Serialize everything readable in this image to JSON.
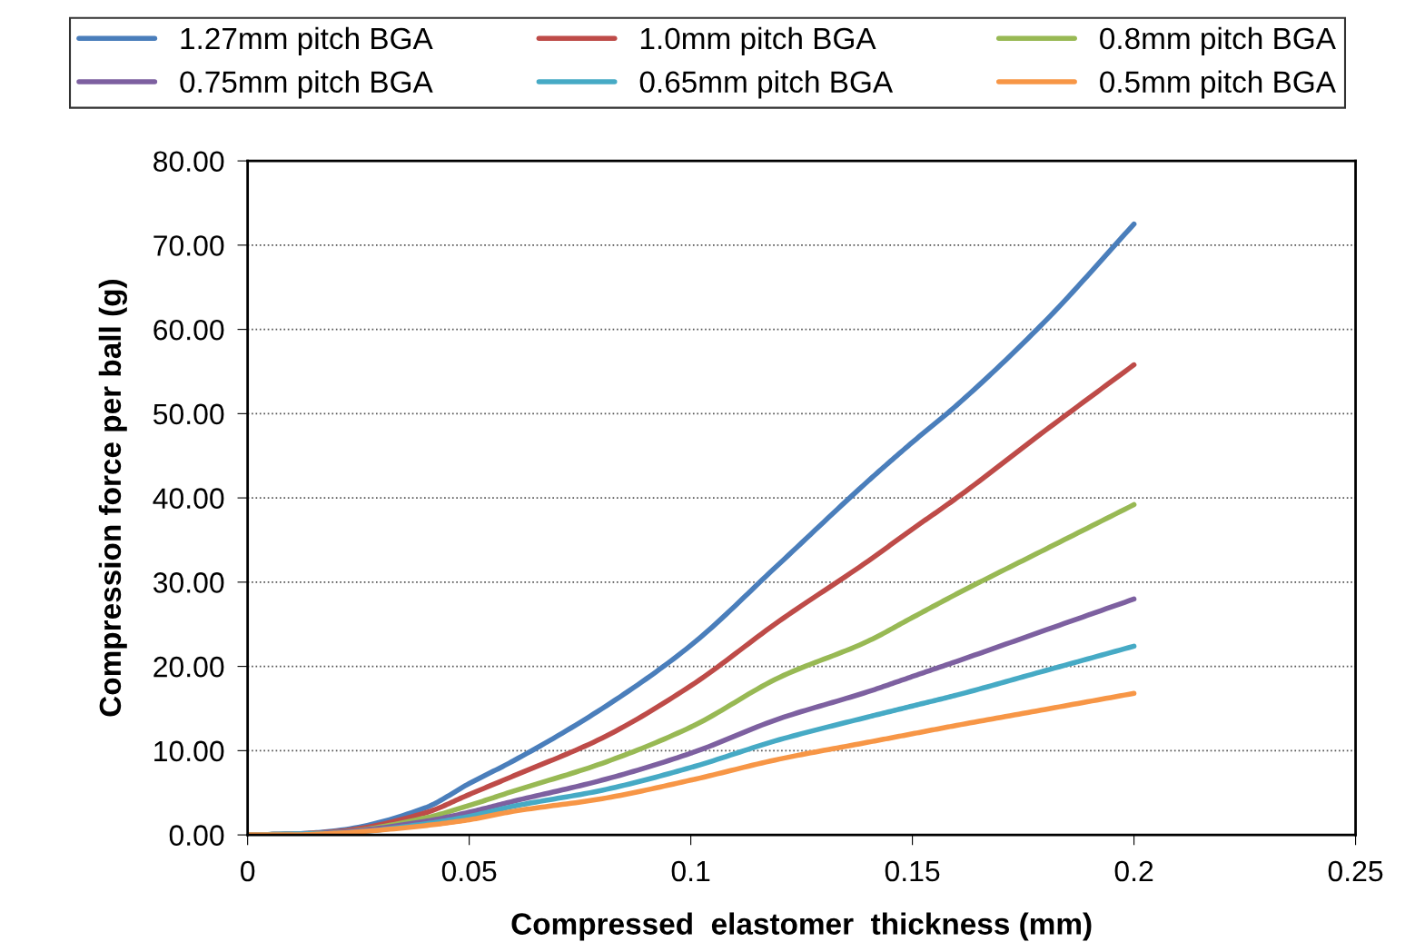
{
  "chart_data": {
    "type": "line",
    "xlabel": "Compressed  elastomer  thickness (mm)",
    "ylabel": "Compression force per ball (g)",
    "x": [
      0,
      0.01,
      0.02,
      0.04,
      0.05,
      0.06,
      0.08,
      0.1,
      0.12,
      0.14,
      0.15,
      0.16,
      0.18,
      0.2
    ],
    "series": [
      {
        "name": "1.27mm pitch BGA",
        "color": "#4a7ebb",
        "values": [
          0,
          0.1,
          0.5,
          3.2,
          6.1,
          8.8,
          15,
          22.5,
          32.2,
          42,
          46.6,
          51,
          61,
          72.5
        ]
      },
      {
        "name": "1.0mm pitch BGA",
        "color": "#be4b48",
        "values": [
          0,
          0.1,
          0.4,
          2.6,
          4.8,
          7,
          11.5,
          17.7,
          25.4,
          32.5,
          36.3,
          40,
          48,
          55.8
        ]
      },
      {
        "name": "0.8mm pitch BGA",
        "color": "#98b954",
        "values": [
          0,
          0.1,
          0.3,
          2,
          3.5,
          5.2,
          8.5,
          12.8,
          18.7,
          23,
          25.8,
          28.6,
          33.9,
          39.2
        ]
      },
      {
        "name": "0.75mm pitch BGA",
        "color": "#7d60a0",
        "values": [
          0,
          0.1,
          0.3,
          1.6,
          2.7,
          4,
          6.5,
          9.7,
          13.8,
          17,
          18.8,
          20.6,
          24.3,
          28
        ]
      },
      {
        "name": "0.65mm pitch BGA",
        "color": "#46aac5",
        "values": [
          0,
          0.1,
          0.2,
          1.3,
          2.2,
          3.4,
          5.3,
          8,
          11.3,
          14,
          15.3,
          16.6,
          19.5,
          22.4
        ]
      },
      {
        "name": "0.5mm pitch BGA",
        "color": "#f79646",
        "values": [
          0,
          0,
          0.2,
          1.1,
          1.8,
          2.8,
          4.3,
          6.5,
          9,
          11,
          12,
          13,
          14.9,
          16.8
        ]
      }
    ],
    "xlim": [
      0,
      0.25
    ],
    "xticks": [
      0,
      0.05,
      0.1,
      0.15,
      0.2,
      0.25
    ],
    "ylim": [
      0,
      80
    ],
    "yticks": [
      {
        "value": 0,
        "label": "0.00"
      },
      {
        "value": 10,
        "label": "10.00"
      },
      {
        "value": 20,
        "label": "20.00"
      },
      {
        "value": 30,
        "label": "30.00"
      },
      {
        "value": 40,
        "label": "40.00"
      },
      {
        "value": 50,
        "label": "50.00"
      },
      {
        "value": 60,
        "label": "60.00"
      },
      {
        "value": 70,
        "label": "70.00"
      },
      {
        "value": 80,
        "label": "80.00"
      }
    ],
    "grid": "y",
    "legend": "top",
    "marker": "none",
    "line_style": "solid"
  }
}
